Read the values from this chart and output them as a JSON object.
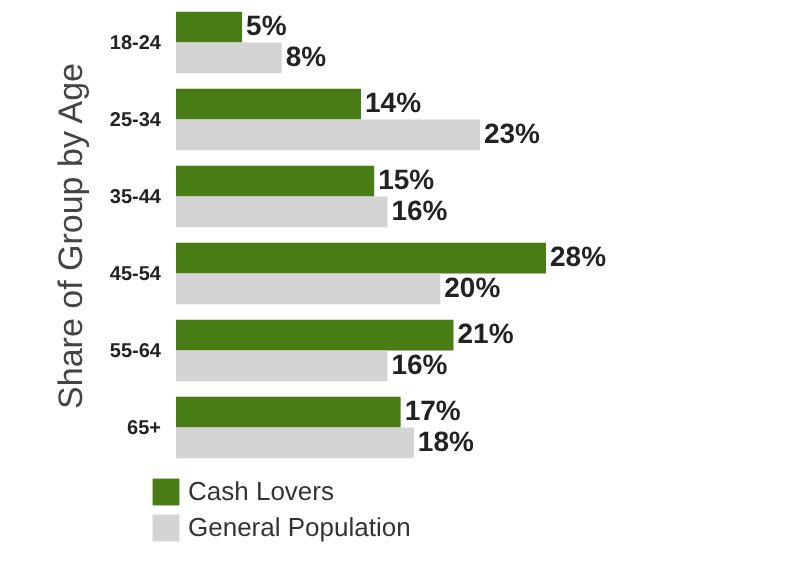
{
  "chart_data": {
    "type": "bar",
    "orientation": "horizontal",
    "ylabel": "Share of Group by Age",
    "categories": [
      "18-24",
      "25-34",
      "35-44",
      "45-54",
      "55-64",
      "65+"
    ],
    "series": [
      {
        "name": "Cash Lovers",
        "color": "#4a7c16",
        "values": [
          5,
          14,
          15,
          28,
          21,
          17
        ],
        "value_labels": [
          "5%",
          "14%",
          "15%",
          "28%",
          "21%",
          "17%"
        ]
      },
      {
        "name": "General Population",
        "color": "#d3d3d3",
        "values": [
          8,
          23,
          16,
          20,
          16,
          18
        ],
        "value_labels": [
          "8%",
          "23%",
          "16%",
          "20%",
          "16%",
          "18%"
        ]
      }
    ],
    "legend": "bottom left"
  }
}
